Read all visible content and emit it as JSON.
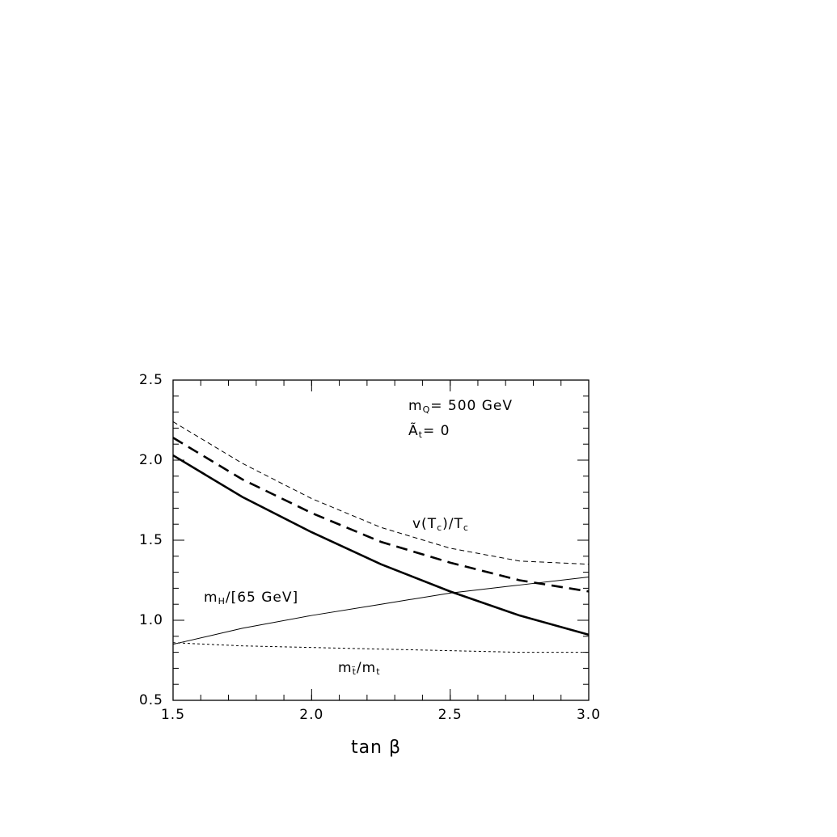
{
  "chart_data": {
    "type": "line",
    "xlabel": "tan β",
    "x": [
      1.5,
      1.75,
      2.0,
      2.25,
      2.5,
      2.75,
      3.0
    ],
    "xlim": [
      1.5,
      3.0
    ],
    "ylim": [
      0.5,
      2.5
    ],
    "xticks": [
      1.5,
      {
        "value": 2,
        "label": "2.0"
      },
      2.5,
      {
        "value": 3,
        "label": "3.0"
      }
    ],
    "yticks": [
      0.5,
      {
        "value": 1,
        "label": "1.0"
      },
      1.5,
      {
        "value": 2,
        "label": "2.0"
      },
      2.5
    ],
    "series": [
      {
        "color": "#000",
        "style": "thin-dashed",
        "values": [
          2.24,
          1.98,
          1.76,
          1.58,
          1.45,
          1.37,
          1.35
        ]
      },
      {
        "color": "#000",
        "style": "thick-dashed",
        "values": [
          2.14,
          1.88,
          1.67,
          1.49,
          1.36,
          1.25,
          1.18
        ]
      },
      {
        "color": "#000",
        "style": "thick-solid",
        "values": [
          2.03,
          1.77,
          1.55,
          1.35,
          1.18,
          1.03,
          0.91
        ]
      },
      {
        "color": "#000",
        "style": "thin-solid",
        "values": [
          0.85,
          0.95,
          1.03,
          1.1,
          1.17,
          1.22,
          1.27
        ]
      },
      {
        "color": "#000",
        "style": "thin-dotted",
        "values": [
          0.86,
          0.84,
          0.83,
          0.82,
          0.81,
          0.8,
          0.8
        ]
      }
    ],
    "annotations": [
      [
        "m",
        "Q",
        "= 500 GeV"
      ],
      [
        "Ã",
        "t",
        "= 0"
      ],
      [
        "v(T",
        "c",
        ")/T",
        "c"
      ],
      [
        "m",
        "H",
        "/[65 GeV]"
      ],
      [
        "m",
        "t̃",
        "/m",
        "t"
      ]
    ]
  }
}
